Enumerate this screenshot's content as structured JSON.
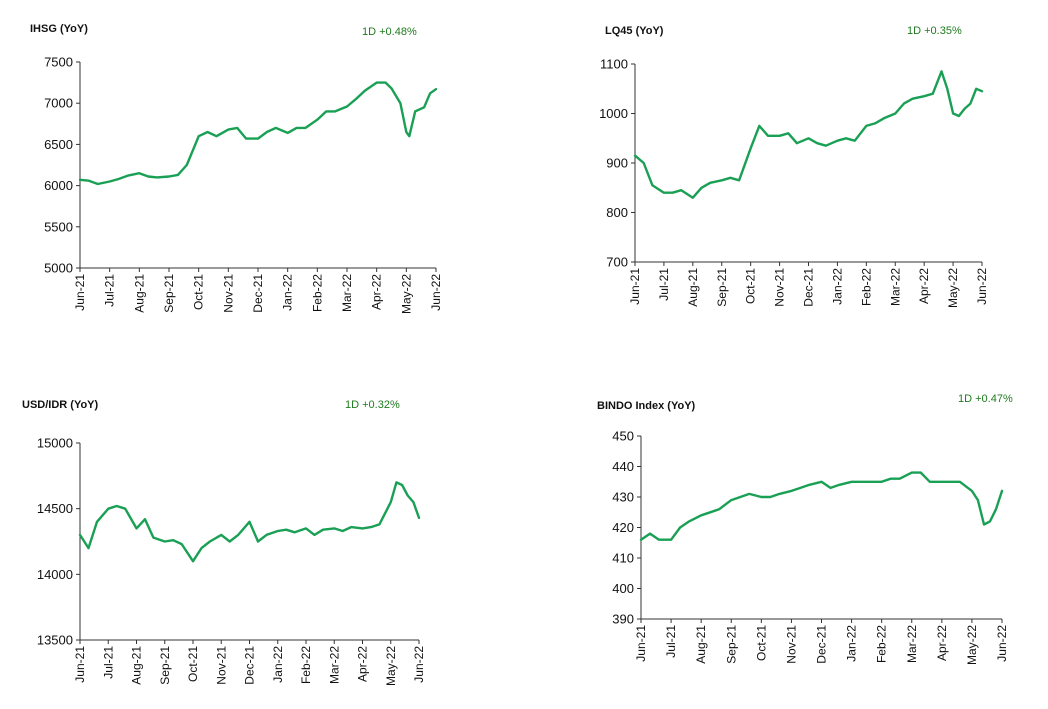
{
  "colors": {
    "series": "#1aa055",
    "change_text": "#1f7a1f"
  },
  "chart_data": [
    {
      "type": "line",
      "title": "IHSG (YoY)",
      "change_label": "1D +0.48%",
      "ylim": [
        5000,
        7500
      ],
      "yticks": [
        "5000",
        "5500",
        "6000",
        "6500",
        "7000",
        "7500"
      ],
      "xticks": [
        "Jun-21",
        "Jul-21",
        "Aug-21",
        "Sep-21",
        "Oct-21",
        "Nov-21",
        "Dec-21",
        "Jan-22",
        "Feb-22",
        "Mar-22",
        "Apr-22",
        "May-22",
        "Jun-22"
      ],
      "grid": false,
      "series": [
        {
          "x": [
            0,
            0.3,
            0.6,
            1,
            1.3,
            1.6,
            2,
            2.3,
            2.6,
            3,
            3.3,
            3.6,
            4,
            4.3,
            4.6,
            5,
            5.3,
            5.6,
            6,
            6.3,
            6.6,
            7,
            7.3,
            7.6,
            8,
            8.3,
            8.6,
            9,
            9.3,
            9.6,
            10,
            10.3,
            10.5,
            10.8,
            11,
            11.1,
            11.3,
            11.6,
            11.8,
            12
          ],
          "values": [
            6070,
            6060,
            6020,
            6050,
            6080,
            6120,
            6150,
            6110,
            6100,
            6110,
            6130,
            6250,
            6600,
            6650,
            6600,
            6680,
            6700,
            6570,
            6570,
            6650,
            6700,
            6640,
            6700,
            6700,
            6800,
            6900,
            6900,
            6960,
            7050,
            7150,
            7250,
            7250,
            7180,
            7000,
            6650,
            6600,
            6900,
            6950,
            7120,
            7170
          ]
        }
      ]
    },
    {
      "type": "line",
      "title": "LQ45 (YoY)",
      "change_label": "1D +0.35%",
      "ylim": [
        700,
        1100
      ],
      "yticks": [
        "700",
        "800",
        "900",
        "1000",
        "1100"
      ],
      "xticks": [
        "Jun-21",
        "Jul-21",
        "Aug-21",
        "Sep-21",
        "Oct-21",
        "Nov-21",
        "Dec-21",
        "Jan-22",
        "Feb-22",
        "Mar-22",
        "Apr-22",
        "May-22",
        "Jun-22"
      ],
      "grid": false,
      "series": [
        {
          "x": [
            0,
            0.3,
            0.6,
            1,
            1.3,
            1.6,
            2,
            2.3,
            2.6,
            3,
            3.3,
            3.6,
            4,
            4.3,
            4.6,
            5,
            5.3,
            5.6,
            6,
            6.3,
            6.6,
            7,
            7.3,
            7.6,
            8,
            8.3,
            8.6,
            9,
            9.3,
            9.6,
            10,
            10.3,
            10.6,
            10.8,
            11,
            11.2,
            11.4,
            11.6,
            11.8,
            12
          ],
          "values": [
            915,
            900,
            855,
            840,
            840,
            845,
            830,
            850,
            860,
            865,
            870,
            865,
            930,
            975,
            955,
            955,
            960,
            940,
            950,
            940,
            935,
            945,
            950,
            945,
            975,
            980,
            990,
            1000,
            1020,
            1030,
            1035,
            1040,
            1085,
            1050,
            1000,
            995,
            1010,
            1020,
            1050,
            1045
          ]
        }
      ]
    },
    {
      "type": "line",
      "title": "USD/IDR  (YoY)",
      "change_label": "1D +0.32%",
      "ylim": [
        13500,
        15000
      ],
      "yticks": [
        "13500",
        "14000",
        "14500",
        "15000"
      ],
      "xticks": [
        "Jun-21",
        "Jul-21",
        "Aug-21",
        "Sep-21",
        "Oct-21",
        "Nov-21",
        "Dec-21",
        "Jan-22",
        "Feb-22",
        "Mar-22",
        "Apr-22",
        "May-22",
        "Jun-22"
      ],
      "grid": false,
      "series": [
        {
          "x": [
            0,
            0.3,
            0.6,
            1,
            1.3,
            1.6,
            2,
            2.3,
            2.6,
            3,
            3.3,
            3.6,
            4,
            4.3,
            4.6,
            5,
            5.3,
            5.6,
            6,
            6.3,
            6.6,
            7,
            7.3,
            7.6,
            8,
            8.3,
            8.6,
            9,
            9.3,
            9.6,
            10,
            10.3,
            10.6,
            11,
            11.2,
            11.4,
            11.6,
            11.8,
            12
          ],
          "values": [
            14300,
            14200,
            14400,
            14500,
            14520,
            14500,
            14350,
            14420,
            14280,
            14250,
            14260,
            14230,
            14100,
            14200,
            14250,
            14300,
            14250,
            14300,
            14400,
            14250,
            14300,
            14330,
            14340,
            14320,
            14350,
            14300,
            14340,
            14350,
            14330,
            14360,
            14350,
            14360,
            14380,
            14550,
            14700,
            14680,
            14600,
            14550,
            14430
          ]
        }
      ]
    },
    {
      "type": "line",
      "title": "BINDO Index (YoY)",
      "change_label": "1D +0.47%",
      "ylim": [
        390,
        450
      ],
      "yticks": [
        "390",
        "400",
        "410",
        "420",
        "430",
        "440",
        "450"
      ],
      "xticks": [
        "Jun-21",
        "Jul-21",
        "Aug-21",
        "Sep-21",
        "Oct-21",
        "Nov-21",
        "Dec-21",
        "Jan-22",
        "Feb-22",
        "Mar-22",
        "Apr-22",
        "May-22",
        "Jun-22"
      ],
      "grid": false,
      "series": [
        {
          "x": [
            0,
            0.3,
            0.6,
            1,
            1.3,
            1.6,
            2,
            2.3,
            2.6,
            3,
            3.3,
            3.6,
            4,
            4.3,
            4.6,
            5,
            5.3,
            5.6,
            6,
            6.3,
            6.6,
            7,
            7.3,
            7.6,
            8,
            8.3,
            8.6,
            9,
            9.3,
            9.6,
            10,
            10.3,
            10.6,
            11,
            11.2,
            11.4,
            11.6,
            11.8,
            12
          ],
          "values": [
            416,
            418,
            416,
            416,
            420,
            422,
            424,
            425,
            426,
            429,
            430,
            431,
            430,
            430,
            431,
            432,
            433,
            434,
            435,
            433,
            434,
            435,
            435,
            435,
            435,
            436,
            436,
            438,
            438,
            435,
            435,
            435,
            435,
            432,
            429,
            421,
            422,
            426,
            432
          ]
        }
      ]
    }
  ]
}
